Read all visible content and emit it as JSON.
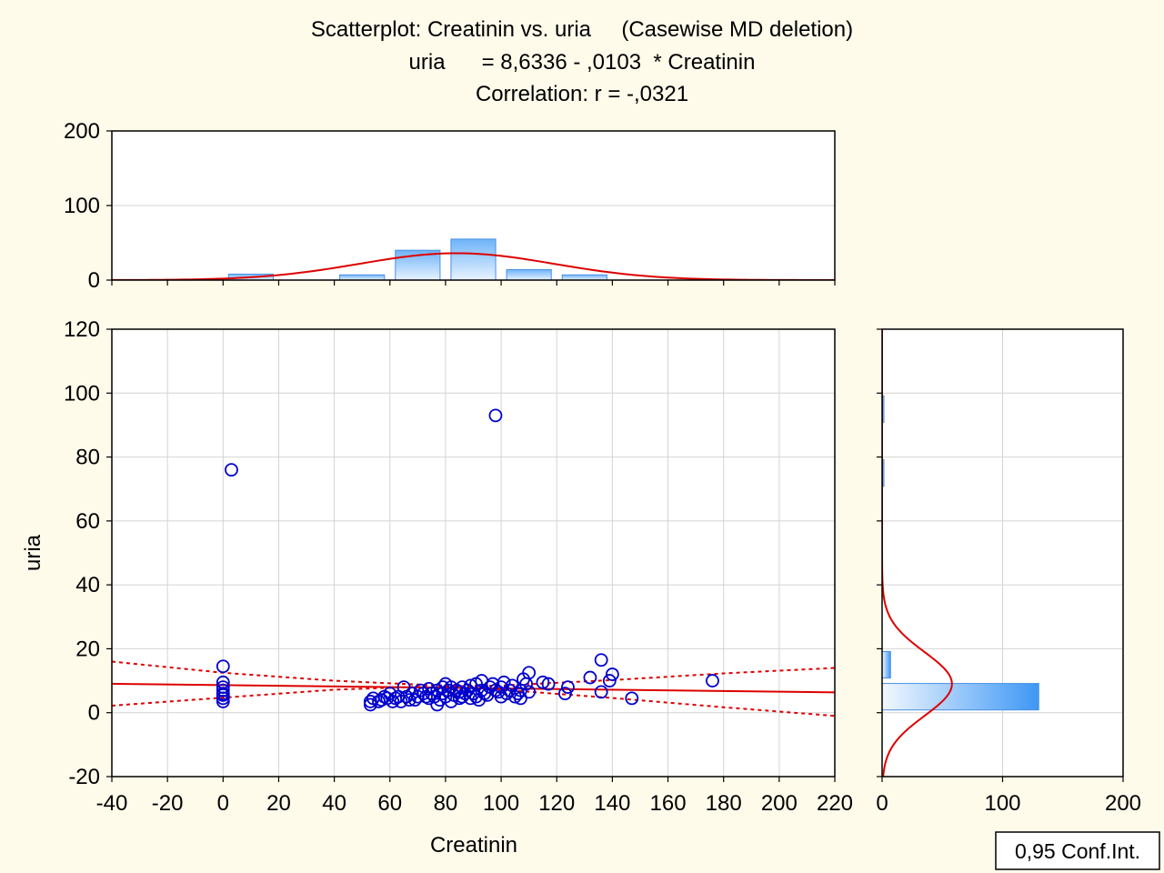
{
  "chart_data": {
    "type": "scatter",
    "title_line1": "Scatterplot: Creatinin vs. uria     (Casewise MD deletion)",
    "title_line2": "uria      = 8,6336 - ,0103  * Creatinin",
    "title_line3": "Correlation: r = -,0321",
    "xlabel": "Creatinin",
    "ylabel": "uria",
    "conf_label": "0,95 Conf.Int.",
    "xlim": [
      -40,
      220
    ],
    "ylim": [
      -20,
      120
    ],
    "x_ticks": [
      "-40",
      "-20",
      "0",
      "20",
      "40",
      "60",
      "80",
      "100",
      "120",
      "140",
      "160",
      "180",
      "200",
      "220"
    ],
    "y_ticks": [
      "-20",
      "0",
      "20",
      "40",
      "60",
      "80",
      "100",
      "120"
    ],
    "grid": true,
    "regression": {
      "intercept": 8.6336,
      "slope": -0.0103,
      "r": -0.0321
    },
    "confidence_band": {
      "x": [
        -40,
        0,
        40,
        70,
        84,
        100,
        140,
        180,
        220
      ],
      "upper": [
        16,
        12.5,
        10,
        8.8,
        8.3,
        8.5,
        10.2,
        12.3,
        14
      ],
      "lower": [
        2.2,
        4.7,
        7.2,
        8.1,
        8.0,
        7.2,
        4.6,
        1.7,
        -1
      ]
    },
    "points": [
      [
        0,
        14.5
      ],
      [
        0,
        9.5
      ],
      [
        0,
        8
      ],
      [
        0,
        7
      ],
      [
        0,
        6
      ],
      [
        0,
        5.5
      ],
      [
        0,
        4.5
      ],
      [
        0,
        3.5
      ],
      [
        3,
        76
      ],
      [
        98,
        93
      ],
      [
        53,
        2.5
      ],
      [
        53,
        3.5
      ],
      [
        54,
        4.5
      ],
      [
        56,
        3.5
      ],
      [
        57,
        4
      ],
      [
        58,
        5
      ],
      [
        59,
        4.5
      ],
      [
        60,
        6
      ],
      [
        61,
        3.5
      ],
      [
        62,
        4.5
      ],
      [
        63,
        5
      ],
      [
        64,
        3.5
      ],
      [
        65,
        8
      ],
      [
        66,
        5
      ],
      [
        67,
        4
      ],
      [
        68,
        6
      ],
      [
        69,
        4
      ],
      [
        70,
        5
      ],
      [
        71,
        7
      ],
      [
        72,
        6
      ],
      [
        73,
        5
      ],
      [
        74,
        4.5
      ],
      [
        74,
        7.5
      ],
      [
        75,
        6
      ],
      [
        76,
        5
      ],
      [
        77,
        2.5
      ],
      [
        77,
        7
      ],
      [
        78,
        4
      ],
      [
        79,
        8
      ],
      [
        79,
        6
      ],
      [
        80,
        9
      ],
      [
        80,
        5
      ],
      [
        81,
        7
      ],
      [
        82,
        3.5
      ],
      [
        82,
        8
      ],
      [
        83,
        5.5
      ],
      [
        84,
        7
      ],
      [
        85,
        4.5
      ],
      [
        85,
        6.5
      ],
      [
        86,
        8
      ],
      [
        86,
        5
      ],
      [
        87,
        6
      ],
      [
        88,
        7
      ],
      [
        89,
        4.5
      ],
      [
        89,
        8.5
      ],
      [
        90,
        6
      ],
      [
        91,
        9
      ],
      [
        91,
        5
      ],
      [
        92,
        4
      ],
      [
        93,
        7
      ],
      [
        93,
        10
      ],
      [
        94,
        6
      ],
      [
        95,
        5.5
      ],
      [
        96,
        8
      ],
      [
        97,
        9
      ],
      [
        98,
        7
      ],
      [
        99,
        6.5
      ],
      [
        100,
        5
      ],
      [
        100,
        8
      ],
      [
        101,
        9.5
      ],
      [
        102,
        6
      ],
      [
        103,
        7
      ],
      [
        104,
        8.5
      ],
      [
        105,
        5
      ],
      [
        106,
        6
      ],
      [
        107,
        4.5
      ],
      [
        107,
        7
      ],
      [
        108,
        10.5
      ],
      [
        109,
        9
      ],
      [
        110,
        12.5
      ],
      [
        110,
        6.5
      ],
      [
        115,
        9.5
      ],
      [
        117,
        9
      ],
      [
        123,
        6
      ],
      [
        124,
        8
      ],
      [
        132,
        11
      ],
      [
        136,
        16.5
      ],
      [
        136,
        6.5
      ],
      [
        139,
        10
      ],
      [
        140,
        12
      ],
      [
        147,
        4.5
      ],
      [
        176,
        10
      ]
    ],
    "top_histogram": {
      "ylim": [
        0,
        200
      ],
      "y_ticks": [
        "0",
        "100",
        "200"
      ],
      "bins": [
        {
          "x0": 0,
          "x1": 20,
          "count": 8
        },
        {
          "x0": 40,
          "x1": 60,
          "count": 7
        },
        {
          "x0": 60,
          "x1": 80,
          "count": 40
        },
        {
          "x0": 80,
          "x1": 100,
          "count": 55
        },
        {
          "x0": 100,
          "x1": 120,
          "count": 14
        },
        {
          "x0": 120,
          "x1": 140,
          "count": 7
        }
      ],
      "normal_curve": {
        "mean": 84,
        "sd": 35,
        "peak": 36
      }
    },
    "right_histogram": {
      "xlim": [
        0,
        200
      ],
      "x_ticks": [
        "0",
        "100",
        "200"
      ],
      "bins": [
        {
          "y0": 0,
          "y1": 10,
          "count": 130
        },
        {
          "y0": 10,
          "y1": 20,
          "count": 7
        },
        {
          "y0": 70,
          "y1": 80,
          "count": 1
        },
        {
          "y0": 90,
          "y1": 100,
          "count": 1
        }
      ],
      "normal_curve": {
        "mean": 9,
        "sd": 10,
        "peak": 58
      }
    },
    "colors": {
      "background": "#fffbeb",
      "points": "#0000cc",
      "fit_line": "#dd0000",
      "bar_light": "#e6f2ff",
      "bar_dark": "#3d97f5",
      "bar_stroke": "#4a90e2",
      "grid": "#d4d4d4"
    }
  }
}
